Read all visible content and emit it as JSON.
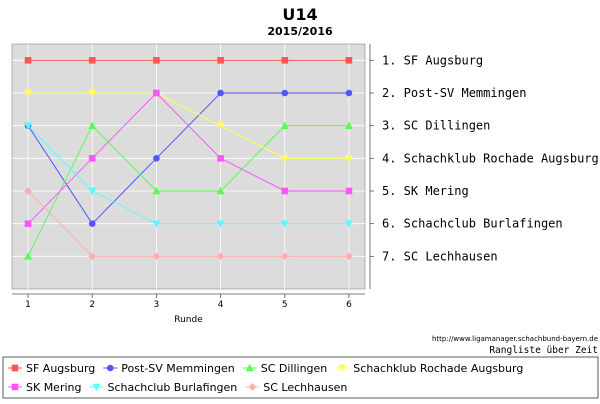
{
  "chart_data": {
    "type": "line",
    "title": "U14",
    "subtitle": "2015/2016",
    "xlabel": "Runde",
    "ylabel": "",
    "x": [
      1,
      2,
      3,
      4,
      5,
      6
    ],
    "xlim": [
      0.75,
      6.25
    ],
    "ylim": [
      8,
      0.5
    ],
    "y_inverted": true,
    "grid": true,
    "rank_labels": [
      "1. SF Augsburg",
      "2. Post-SV Memmingen",
      "3. SC Dillingen",
      "4. Schachklub Rochade Augsburg",
      "5. SK Mering",
      "6. Schachclub Burlafingen",
      "7. SC Lechhausen"
    ],
    "series": [
      {
        "name": "SF Augsburg",
        "values": [
          1,
          1,
          1,
          1,
          1,
          1
        ],
        "color": "#ff5555",
        "marker": "square"
      },
      {
        "name": "Post-SV Memmingen",
        "values": [
          3,
          6,
          4,
          2,
          2,
          2
        ],
        "color": "#5555ff",
        "marker": "circle"
      },
      {
        "name": "SC Dillingen",
        "values": [
          7,
          3,
          5,
          5,
          3,
          3
        ],
        "color": "#55ff55",
        "marker": "triangle-up"
      },
      {
        "name": "Schachklub Rochade Augsburg",
        "values": [
          2,
          2,
          2,
          3,
          4,
          4
        ],
        "color": "#ffff55",
        "marker": "triangle-down"
      },
      {
        "name": "SK Mering",
        "values": [
          6,
          4,
          2,
          4,
          5,
          5
        ],
        "color": "#ff55ff",
        "marker": "square"
      },
      {
        "name": "Schachclub Burlafingen",
        "values": [
          3,
          5,
          6,
          6,
          6,
          6
        ],
        "color": "#55ffff",
        "marker": "triangle-down"
      },
      {
        "name": "SC Lechhausen",
        "values": [
          5,
          7,
          7,
          7,
          7,
          7
        ],
        "color": "#ffafaf",
        "marker": "diamond"
      }
    ],
    "legend_position": "bottom",
    "annotations": [
      "http://www.ligamanager.schachbund-bayern.de",
      "Rangliste über Zeit"
    ]
  },
  "colors": {
    "plot_background": "#dcdcdc",
    "page_background": "#ffffff",
    "gridline": "#ffffff"
  }
}
